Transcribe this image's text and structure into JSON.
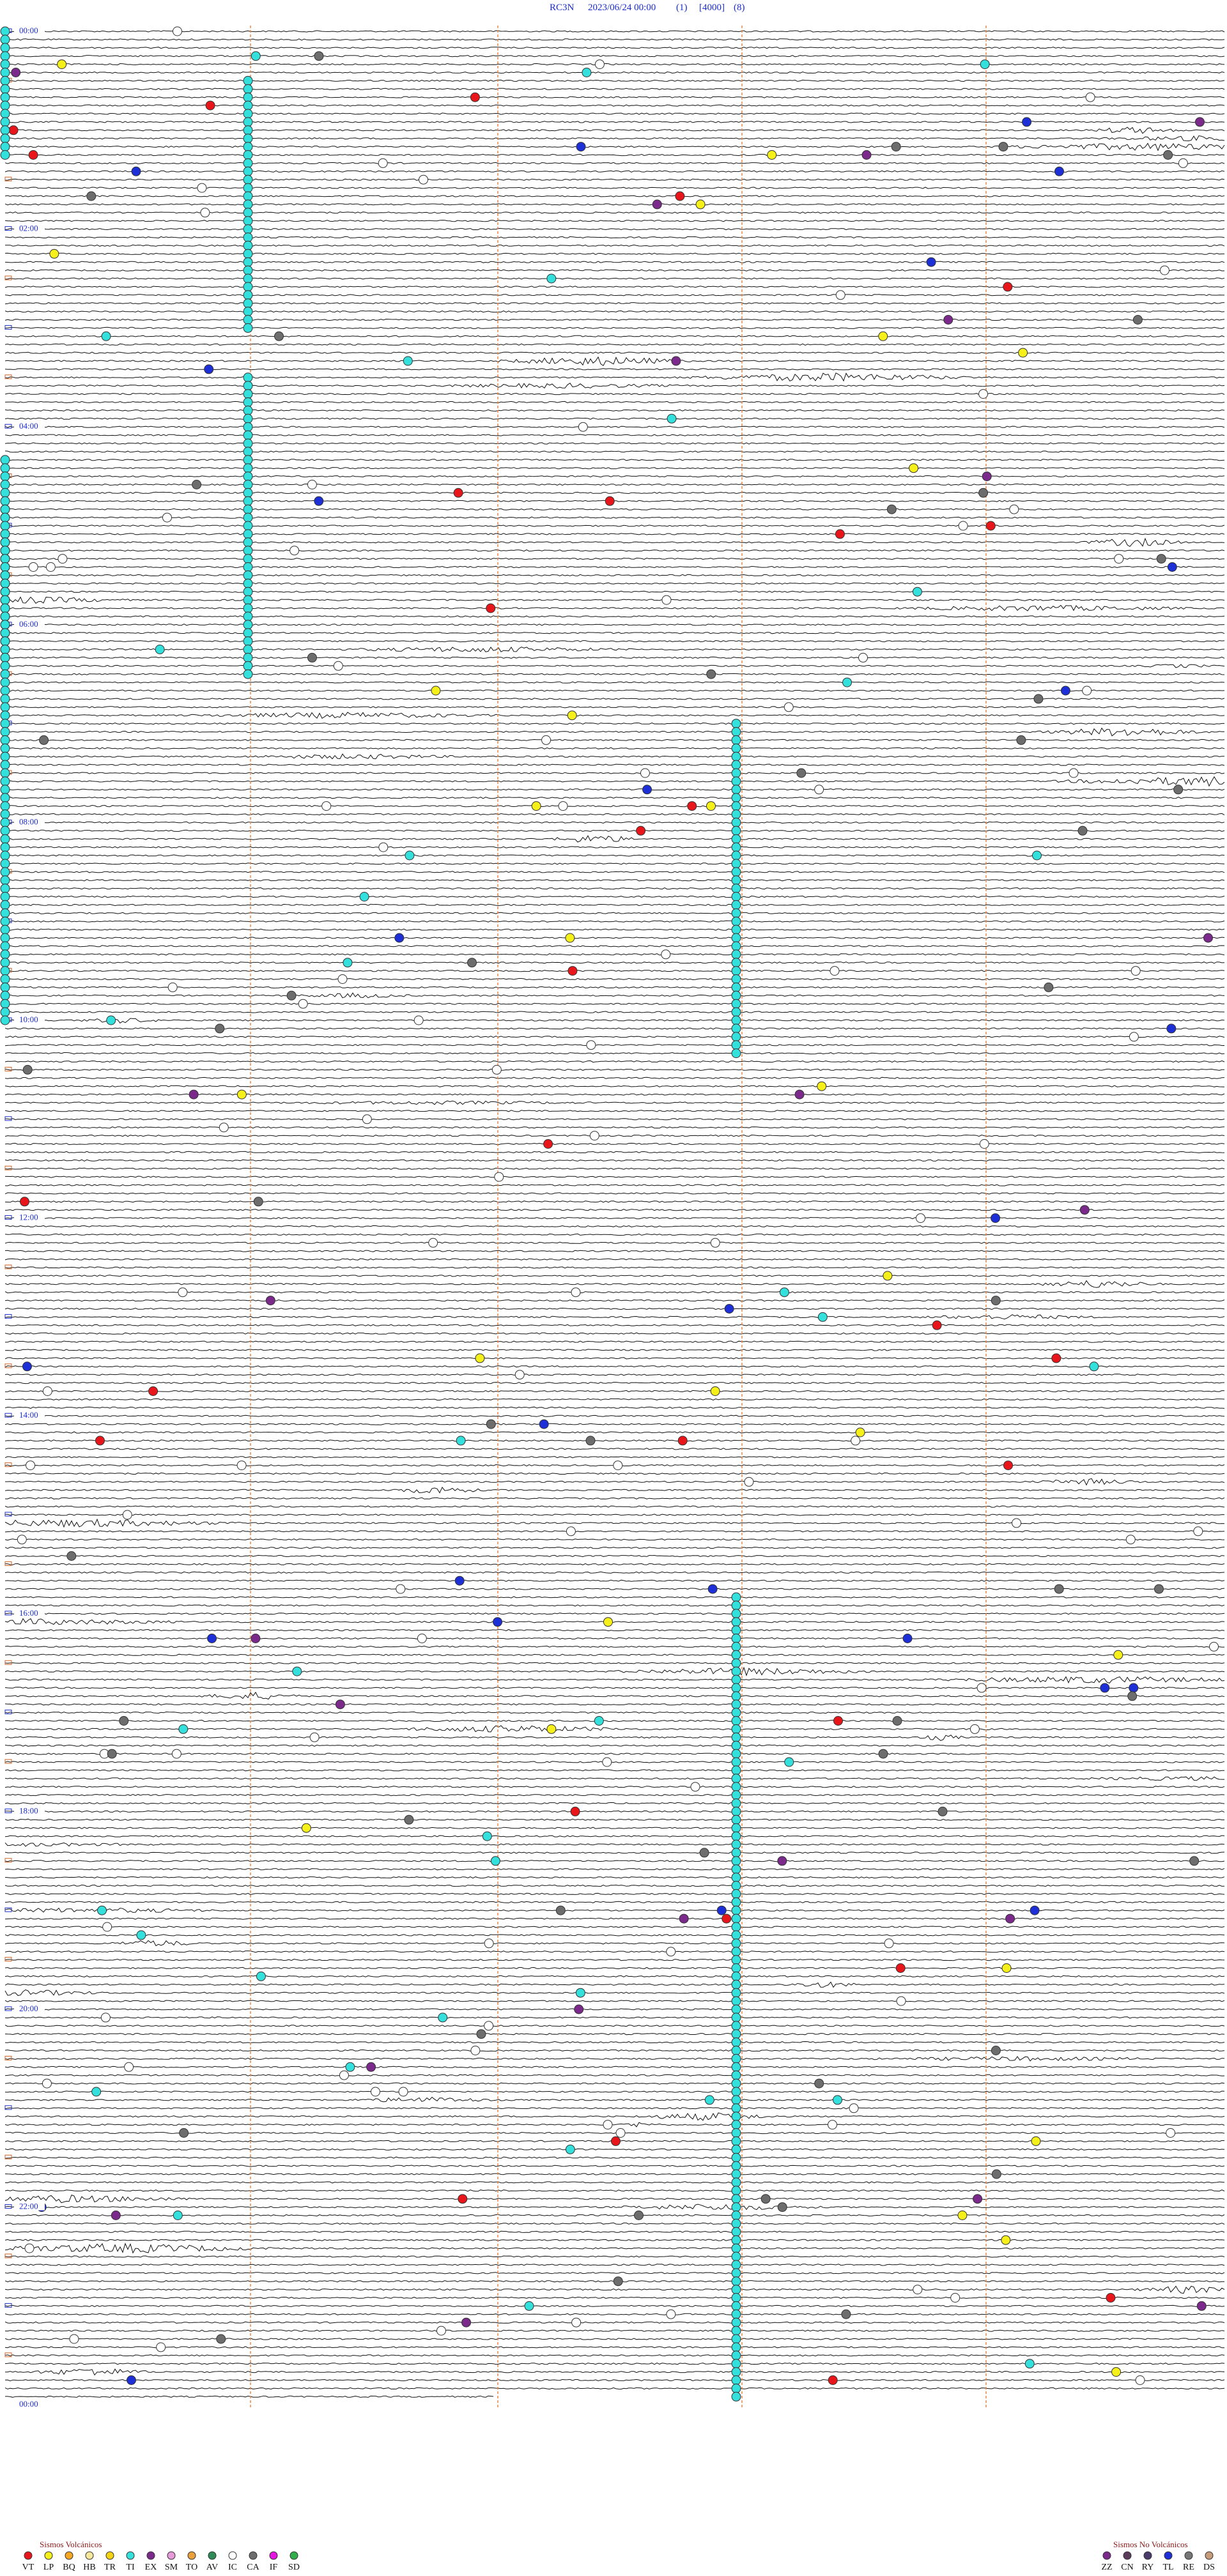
{
  "header": {
    "station": "RC3N",
    "datetime": "2023/06/24 00:00",
    "channel": "(1)",
    "scale": "[4000]",
    "filter": "(8)"
  },
  "time_labels": [
    "00:00",
    "02:00",
    "04:00",
    "06:00",
    "08:00",
    "10:00",
    "12:00",
    "14:00",
    "16:00",
    "18:00",
    "20:00",
    "22:00",
    "00:00"
  ],
  "legend": {
    "volcanic": {
      "title": "Sismos Volcánicos",
      "items": [
        {
          "label": "VT",
          "color": "#e8161b"
        },
        {
          "label": "LP",
          "color": "#f5ef1a"
        },
        {
          "label": "BQ",
          "color": "#f5a623"
        },
        {
          "label": "HB",
          "color": "#f7e79a"
        },
        {
          "label": "TR",
          "color": "#f5d312"
        },
        {
          "label": "TI",
          "color": "#33e0dc"
        },
        {
          "label": "EX",
          "color": "#7b2a8c"
        },
        {
          "label": "SM",
          "color": "#e79ad8"
        },
        {
          "label": "TO",
          "color": "#e8a13c"
        },
        {
          "label": "AV",
          "color": "#2e8b57"
        },
        {
          "label": "IC",
          "color": "#ffffff"
        },
        {
          "label": "CA",
          "color": "#6d6d6d"
        },
        {
          "label": "IF",
          "color": "#e316e0"
        },
        {
          "label": "SD",
          "color": "#31b04a"
        }
      ]
    },
    "non_volcanic": {
      "title": "Sismos No Volcánicos",
      "items": [
        {
          "label": "ZZ",
          "color": "#7b2a8c"
        },
        {
          "label": "CN",
          "color": "#5a3c5a"
        },
        {
          "label": "RY",
          "color": "#4a3a6a"
        },
        {
          "label": "TL",
          "color": "#1d2fd6"
        },
        {
          "label": "RE",
          "color": "#777777"
        },
        {
          "label": "DS",
          "color": "#c79a7a"
        }
      ]
    }
  }
}
